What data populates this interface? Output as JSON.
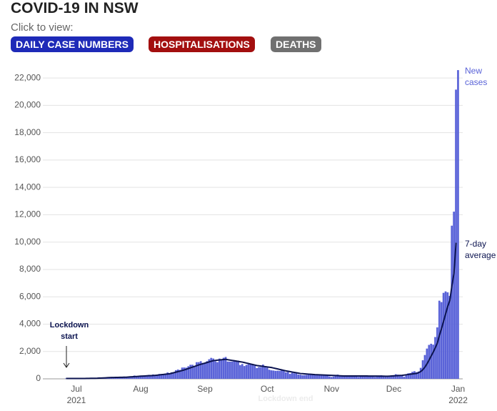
{
  "header": {
    "title": "COVID-19 IN NSW",
    "prompt": "Click to view:",
    "buttons": [
      "DAILY CASE NUMBERS",
      "HOSPITALISATIONS",
      "DEATHS"
    ]
  },
  "chart_data": {
    "type": "bar",
    "categories": [
      null,
      null,
      null,
      null,
      null,
      "Jul\n2021",
      null,
      null,
      null,
      null,
      null,
      null,
      null,
      null,
      null,
      null,
      null,
      null,
      null,
      null,
      null,
      null,
      null,
      null,
      null,
      null,
      null,
      null,
      null,
      null,
      null,
      null,
      null,
      null,
      null,
      null,
      "Aug",
      null,
      null,
      null,
      null,
      null,
      null,
      null,
      null,
      null,
      null,
      null,
      null,
      null,
      null,
      null,
      null,
      null,
      null,
      null,
      null,
      null,
      null,
      null,
      null,
      null,
      null,
      null,
      null,
      null,
      null,
      "Sep",
      null,
      null,
      null,
      null,
      null,
      null,
      null,
      null,
      null,
      null,
      null,
      null,
      null,
      null,
      null,
      null,
      null,
      null,
      null,
      null,
      null,
      null,
      null,
      null,
      null,
      null,
      null,
      null,
      null,
      "Oct",
      null,
      null,
      null,
      null,
      null,
      null,
      null,
      null,
      null,
      null,
      null,
      null,
      null,
      null,
      null,
      null,
      null,
      null,
      null,
      null,
      null,
      null,
      null,
      null,
      null,
      null,
      null,
      null,
      null,
      null,
      "Nov",
      null,
      null,
      null,
      null,
      null,
      null,
      null,
      null,
      null,
      null,
      null,
      null,
      null,
      null,
      null,
      null,
      null,
      null,
      null,
      null,
      null,
      null,
      null,
      null,
      null,
      null,
      null,
      null,
      null,
      "Dec",
      null,
      null,
      null,
      null,
      null,
      null,
      null,
      null,
      null,
      null,
      null,
      null,
      null,
      null,
      null,
      null,
      null,
      null,
      null,
      null,
      null,
      null,
      null,
      null,
      null,
      null,
      null,
      null,
      null,
      null,
      "Jan\n2022"
    ],
    "series": [
      {
        "name": "New\ncases",
        "color": "#5a63d8",
        "values": [
          29,
          30,
          18,
          19,
          22,
          24,
          31,
          35,
          16,
          35,
          27,
          38,
          44,
          50,
          45,
          77,
          112,
          89,
          97,
          65,
          97,
          111,
          105,
          98,
          78,
          110,
          124,
          136,
          163,
          141,
          145,
          172,
          177,
          239,
          170,
          210,
          239,
          207,
          199,
          233,
          291,
          262,
          319,
          262,
          283,
          356,
          344,
          345,
          390,
          466,
          415,
          478,
          452,
          633,
          681,
          644,
          825,
          830,
          818,
          919,
          1029,
          1029,
          882,
          1218,
          1220,
          1290,
          1164,
          1116,
          1288,
          1431,
          1533,
          1485,
          1281,
          1220,
          1480,
          1405,
          1542,
          1599,
          1262,
          1257,
          1259,
          1351,
          1284,
          1331,
          1007,
          1083,
          935,
          1022,
          1063,
          1043,
          1007,
          961,
          787,
          863,
          863,
          1043,
          941,
          813,
          667,
          623,
          608,
          587,
          594,
          580,
          646,
          580,
          477,
          496,
          360,
          444,
          406,
          399,
          319,
          301,
          265,
          273,
          283,
          372,
          345,
          332,
          296,
          282,
          304,
          282,
          268,
          278,
          236,
          177,
          135,
          173,
          249,
          308,
          216,
          187,
          211,
          180,
          185,
          222,
          248,
          253,
          212,
          140,
          173,
          191,
          250,
          261,
          213,
          168,
          180,
          141,
          201,
          251,
          261,
          176,
          150,
          149,
          150,
          261,
          271,
          337,
          306,
          262,
          208,
          149,
          260,
          403,
          420,
          516,
          560,
          485,
          536,
          804,
          1360,
          1742,
          2213,
          2482,
          2566,
          2501,
          3057,
          3763,
          5715,
          5612,
          6288,
          6394,
          6324,
          6062,
          11201,
          12226,
          21151,
          22577
        ]
      },
      {
        "name": "7-day\naverage",
        "color": "#0c1450",
        "type": "line",
        "values": [
          25,
          25,
          25,
          24,
          24,
          24,
          24,
          24,
          24,
          27,
          30,
          33,
          36,
          39,
          42,
          45,
          52,
          60,
          67,
          75,
          82,
          90,
          97,
          100,
          104,
          107,
          111,
          114,
          118,
          121,
          131,
          141,
          152,
          162,
          172,
          183,
          193,
          202,
          210,
          219,
          227,
          236,
          244,
          253,
          270,
          287,
          304,
          320,
          337,
          354,
          371,
          411,
          451,
          490,
          530,
          570,
          609,
          649,
          701,
          754,
          806,
          859,
          911,
          964,
          1016,
          1061,
          1106,
          1151,
          1196,
          1240,
          1285,
          1330,
          1347,
          1363,
          1380,
          1397,
          1413,
          1430,
          1398,
          1373,
          1348,
          1324,
          1299,
          1274,
          1250,
          1225,
          1189,
          1153,
          1117,
          1082,
          1046,
          1010,
          974,
          953,
          933,
          912,
          892,
          871,
          851,
          830,
          794,
          759,
          724,
          688,
          653,
          617,
          582,
          554,
          527,
          499,
          472,
          444,
          417,
          389,
          378,
          366,
          355,
          343,
          332,
          320,
          309,
          302,
          295,
          288,
          282,
          275,
          268,
          261,
          254,
          247,
          240,
          232,
          225,
          218,
          211,
          210,
          210,
          209,
          209,
          208,
          207,
          206,
          206,
          206,
          206,
          206,
          205,
          205,
          205,
          203,
          201,
          199,
          197,
          195,
          192,
          190,
          199,
          209,
          218,
          228,
          237,
          247,
          256,
          276,
          297,
          317,
          338,
          358,
          379,
          399,
          454,
          532,
          669,
          858,
          1100,
          1375,
          1672,
          1953,
          2275,
          2618,
          3186,
          3672,
          4216,
          4763,
          5309,
          5738,
          6801,
          7731,
          9951,
          null
        ]
      }
    ],
    "ylim": [
      0,
      23000
    ],
    "yticks": [
      0,
      {
        "value": 2000,
        "label": "2,000"
      },
      {
        "value": 4000,
        "label": "4,000"
      },
      {
        "value": 6000,
        "label": "6,000"
      },
      {
        "value": 8000,
        "label": "8,000"
      },
      {
        "value": 10000,
        "label": "10,000"
      },
      {
        "value": 12000,
        "label": "12,000"
      },
      {
        "value": 14000,
        "label": "14,000"
      },
      {
        "value": 16000,
        "label": "16,000"
      },
      {
        "value": 18000,
        "label": "18,000"
      },
      {
        "value": 20000,
        "label": "20,000"
      },
      {
        "value": 22000,
        "label": "22,000"
      }
    ],
    "grid": true,
    "annotations": {
      "lockdown_start": "Lockdown\nstart",
      "lockdown_end": "Lockdown end"
    }
  }
}
